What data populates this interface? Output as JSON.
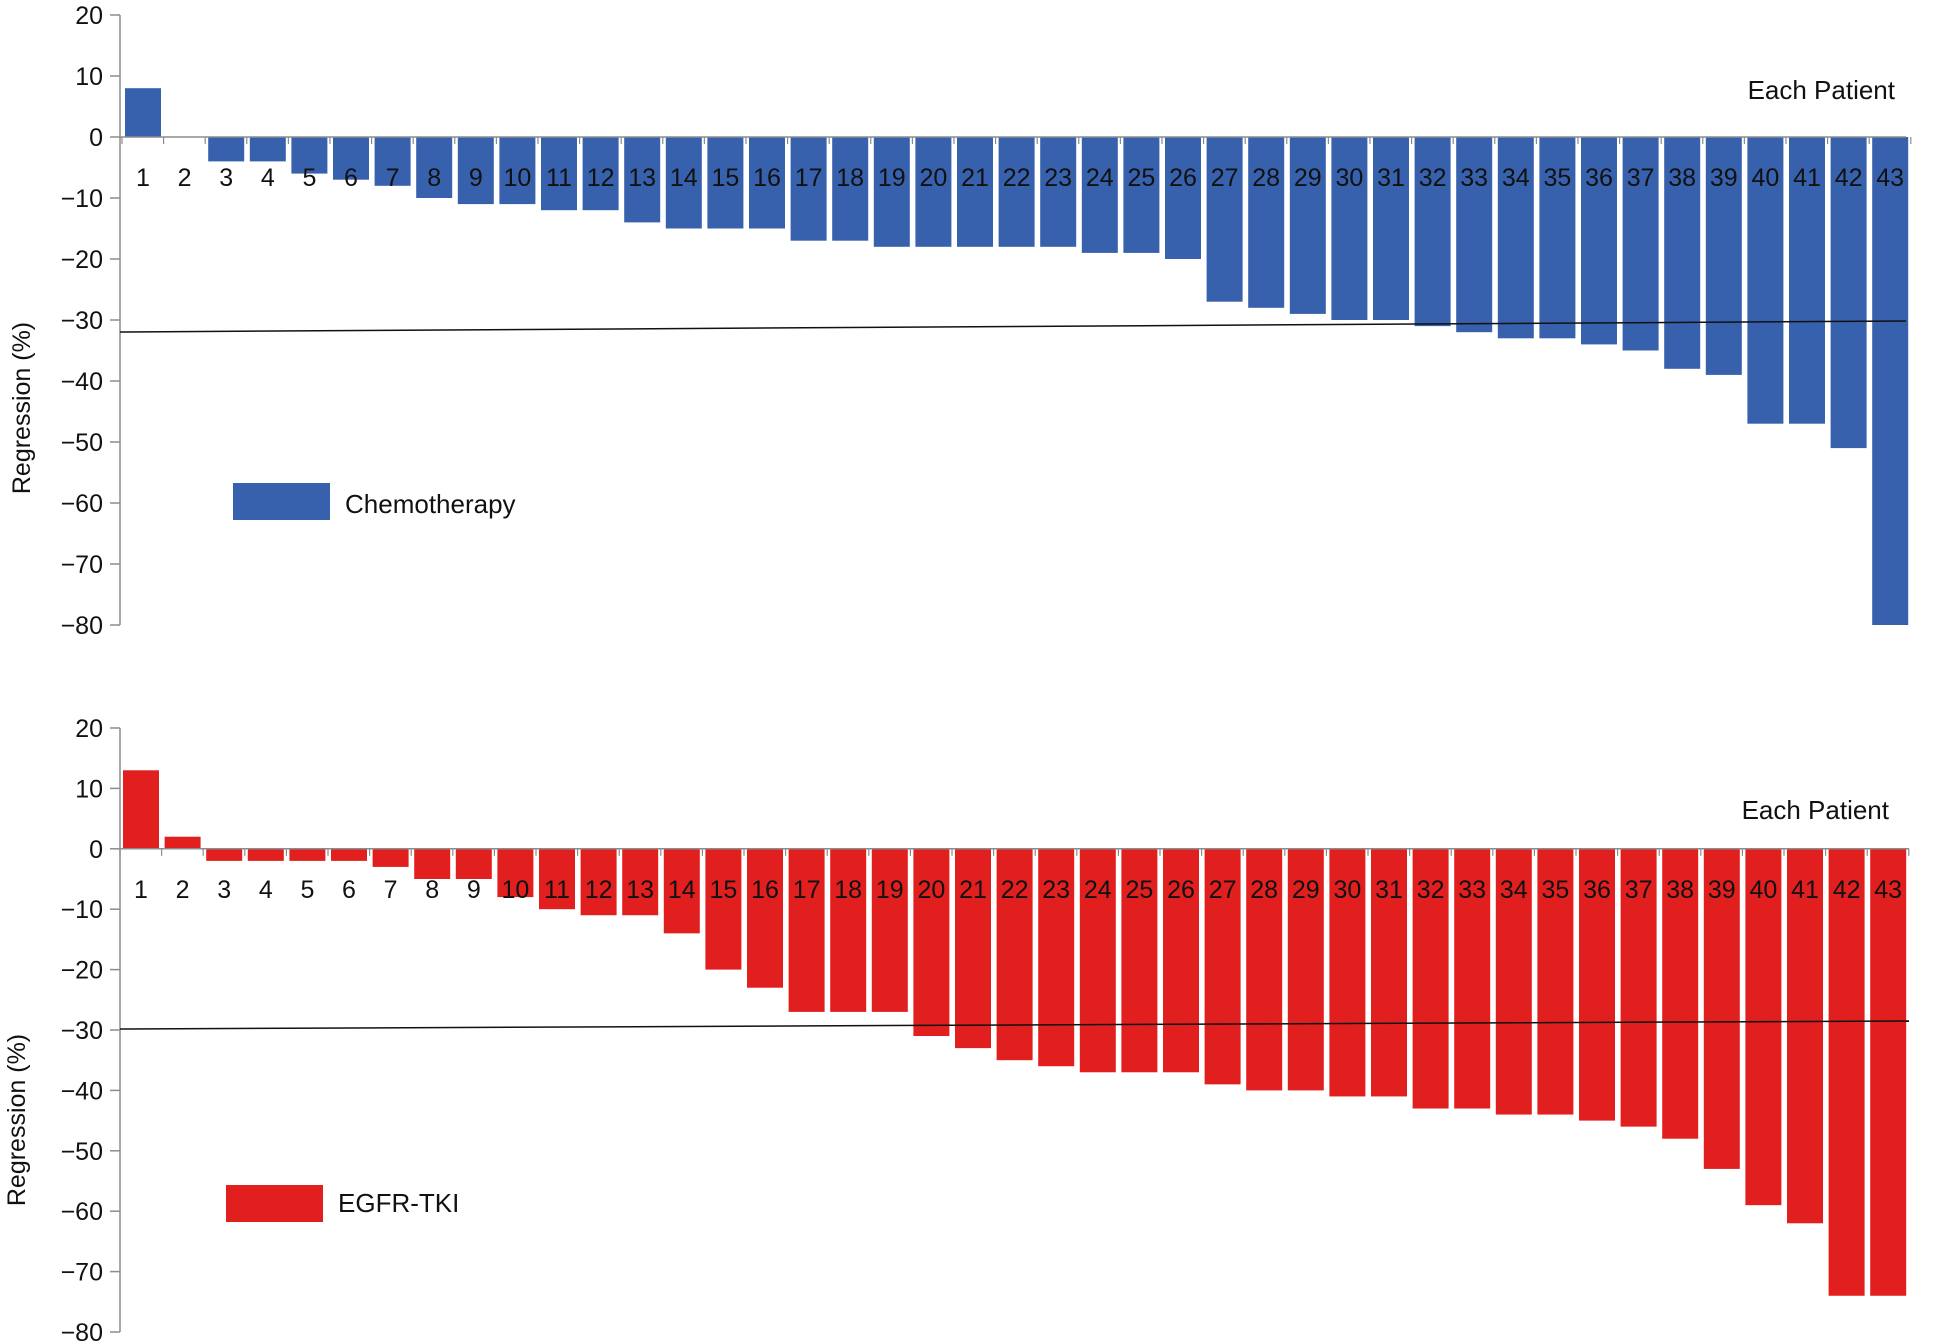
{
  "chart_data": [
    {
      "type": "bar",
      "ylabel": "Regression (%)",
      "ylim": [
        -80,
        20
      ],
      "yticks": [
        "20",
        "10",
        "0",
        "−10",
        "−20",
        "−30",
        "−40",
        "−50",
        "−60",
        "−70",
        "−80"
      ],
      "categories": [
        "1",
        "2",
        "3",
        "4",
        "5",
        "6",
        "7",
        "8",
        "9",
        "10",
        "11",
        "12",
        "13",
        "14",
        "15",
        "16",
        "17",
        "18",
        "19",
        "20",
        "21",
        "22",
        "23",
        "24",
        "25",
        "26",
        "27",
        "28",
        "29",
        "30",
        "31",
        "32",
        "33",
        "34",
        "35",
        "36",
        "37",
        "38",
        "39",
        "40",
        "41",
        "42",
        "43"
      ],
      "annotation": "Each Patient",
      "reference_line": -30,
      "grid": false,
      "legend_position": "middle-left",
      "series": [
        {
          "name": "Chemotherapy",
          "color": "#3861ad",
          "values": [
            8,
            0,
            -4,
            -4,
            -6,
            -7,
            -8,
            -10,
            -11,
            -11,
            -12,
            -12,
            -14,
            -15,
            -15,
            -15,
            -17,
            -17,
            -18,
            -18,
            -18,
            -18,
            -18,
            -19,
            -19,
            -20,
            -27,
            -28,
            -29,
            -30,
            -30,
            -31,
            -32,
            -33,
            -33,
            -34,
            -35,
            -38,
            -39,
            -47,
            -47,
            -51,
            -80
          ]
        }
      ]
    },
    {
      "type": "bar",
      "ylabel": "Regression (%)",
      "ylim": [
        -80,
        20
      ],
      "yticks": [
        "20",
        "10",
        "0",
        "−10",
        "−20",
        "−30",
        "−40",
        "−50",
        "−60",
        "−70",
        "−80"
      ],
      "categories": [
        "1",
        "2",
        "3",
        "4",
        "5",
        "6",
        "7",
        "8",
        "9",
        "10",
        "11",
        "12",
        "13",
        "14",
        "15",
        "16",
        "17",
        "18",
        "19",
        "20",
        "21",
        "22",
        "23",
        "24",
        "25",
        "26",
        "27",
        "28",
        "29",
        "30",
        "31",
        "32",
        "33",
        "34",
        "35",
        "36",
        "37",
        "38",
        "39",
        "40",
        "41",
        "42",
        "43"
      ],
      "annotation": "Each Patient",
      "reference_line": -30,
      "grid": false,
      "legend_position": "middle-left",
      "series": [
        {
          "name": "EGFR-TKI",
          "color": "#e11f1f",
          "values": [
            13,
            2,
            -2,
            -2,
            -2,
            -2,
            -3,
            -5,
            -5,
            -8,
            -10,
            -11,
            -11,
            -14,
            -20,
            -23,
            -27,
            -27,
            -27,
            -31,
            -33,
            -35,
            -36,
            -37,
            -37,
            -37,
            -39,
            -40,
            -40,
            -41,
            -41,
            -43,
            -43,
            -44,
            -44,
            -45,
            -46,
            -48,
            -53,
            -59,
            -62,
            -74,
            -74
          ]
        }
      ]
    }
  ]
}
